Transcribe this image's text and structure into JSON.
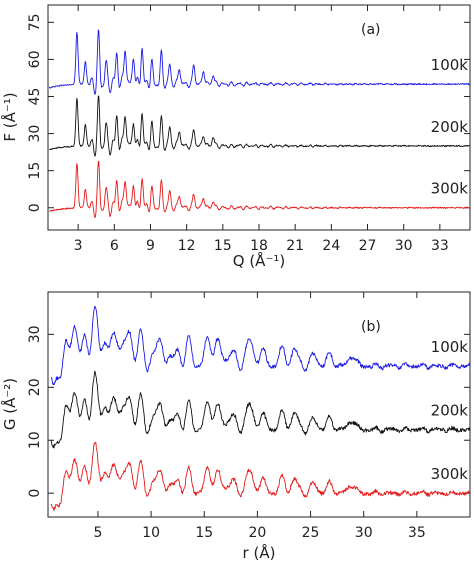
{
  "chart_data": [
    {
      "type": "line",
      "panel_label": "(a)",
      "xlabel": "Q (Å⁻¹)",
      "ylabel": "F (Å⁻¹)",
      "xlim": [
        0.5,
        35.5
      ],
      "ylim": [
        -9,
        82
      ],
      "xticks": [
        3,
        6,
        9,
        12,
        15,
        18,
        21,
        24,
        27,
        30,
        33
      ],
      "yticks": [
        0,
        15,
        30,
        45,
        60,
        75
      ],
      "grid": false,
      "series": [
        {
          "name": "100k",
          "color": "#1a1ae6",
          "offset": 50,
          "scale": 1.0,
          "peaks": [
            [
              2.9,
              21
            ],
            [
              3.6,
              9
            ],
            [
              4.7,
              19
            ],
            [
              5.3,
              8
            ],
            [
              6.2,
              13
            ],
            [
              6.9,
              16
            ],
            [
              7.6,
              12
            ],
            [
              8.3,
              15
            ],
            [
              9.1,
              9
            ],
            [
              9.9,
              12
            ],
            [
              10.6,
              8
            ],
            [
              11.4,
              7
            ],
            [
              12.6,
              8
            ],
            [
              13.4,
              6
            ],
            [
              14.2,
              4
            ]
          ]
        },
        {
          "name": "200k",
          "color": "#111111",
          "offset": 25,
          "scale": 0.97,
          "peaks": [
            [
              2.9,
              20
            ],
            [
              3.6,
              9
            ],
            [
              4.7,
              18
            ],
            [
              5.3,
              8
            ],
            [
              6.2,
              13
            ],
            [
              6.9,
              15
            ],
            [
              7.6,
              11
            ],
            [
              8.3,
              14
            ],
            [
              9.1,
              9
            ],
            [
              9.9,
              11
            ],
            [
              10.6,
              8
            ],
            [
              11.4,
              7
            ],
            [
              12.6,
              7
            ],
            [
              13.4,
              5
            ],
            [
              14.2,
              4
            ]
          ]
        },
        {
          "name": "300k",
          "color": "#e61a1a",
          "offset": 0,
          "scale": 0.95,
          "peaks": [
            [
              2.9,
              19
            ],
            [
              3.6,
              8
            ],
            [
              4.7,
              17
            ],
            [
              5.3,
              7
            ],
            [
              6.2,
              12
            ],
            [
              6.9,
              14
            ],
            [
              7.6,
              11
            ],
            [
              8.3,
              13
            ],
            [
              9.1,
              8
            ],
            [
              9.9,
              10
            ],
            [
              10.6,
              7
            ],
            [
              11.4,
              6
            ],
            [
              12.6,
              6
            ],
            [
              13.4,
              5
            ],
            [
              14.2,
              3
            ]
          ]
        }
      ]
    },
    {
      "type": "line",
      "panel_label": "(b)",
      "xlabel": "r (Å)",
      "ylabel": "G (Å⁻²)",
      "xlim": [
        0.3,
        40
      ],
      "ylim": [
        -4.5,
        38
      ],
      "xticks": [
        5,
        10,
        15,
        20,
        25,
        30,
        35
      ],
      "yticks": [
        0,
        10,
        20,
        30
      ],
      "grid": false,
      "series": [
        {
          "name": "100k",
          "color": "#1a1ae6",
          "offset": 24,
          "scale": 1.0,
          "peaks": [
            [
              2.6,
              9
            ],
            [
              3.9,
              6
            ],
            [
              4.8,
              8
            ],
            [
              5.7,
              5
            ],
            [
              6.8,
              7
            ],
            [
              7.9,
              6
            ],
            [
              8.9,
              5
            ],
            [
              10.3,
              3
            ],
            [
              11.1,
              4
            ],
            [
              12.5,
              3
            ],
            [
              13.6,
              4
            ],
            [
              15.4,
              5
            ],
            [
              16.3,
              4
            ],
            [
              17.5,
              3
            ],
            [
              19.2,
              5
            ],
            [
              20.4,
              3
            ],
            [
              22.3,
              3
            ],
            [
              23.5,
              3
            ],
            [
              25.3,
              2
            ],
            [
              26.8,
              2
            ],
            [
              28.9,
              2
            ]
          ]
        },
        {
          "name": "200k",
          "color": "#111111",
          "offset": 12,
          "scale": 0.95,
          "peaks": [
            [
              2.6,
              9
            ],
            [
              3.9,
              6
            ],
            [
              4.8,
              8
            ],
            [
              5.7,
              5
            ],
            [
              6.8,
              7
            ],
            [
              7.9,
              6
            ],
            [
              8.9,
              5
            ],
            [
              10.3,
              3
            ],
            [
              11.1,
              4
            ],
            [
              12.5,
              3
            ],
            [
              13.6,
              4
            ],
            [
              15.4,
              5
            ],
            [
              16.3,
              4
            ],
            [
              17.5,
              3
            ],
            [
              19.2,
              5
            ],
            [
              20.4,
              3
            ],
            [
              22.3,
              3
            ],
            [
              23.5,
              3
            ],
            [
              25.3,
              2
            ],
            [
              26.8,
              2
            ],
            [
              28.9,
              2
            ]
          ]
        },
        {
          "name": "300k",
          "color": "#e61a1a",
          "offset": 0,
          "scale": 0.85,
          "peaks": [
            [
              2.6,
              9
            ],
            [
              3.9,
              6
            ],
            [
              4.8,
              8
            ],
            [
              5.7,
              5
            ],
            [
              6.8,
              7
            ],
            [
              7.9,
              6
            ],
            [
              8.9,
              5
            ],
            [
              10.3,
              3
            ],
            [
              11.1,
              4
            ],
            [
              12.5,
              3
            ],
            [
              13.6,
              4
            ],
            [
              15.4,
              5
            ],
            [
              16.3,
              4
            ],
            [
              17.5,
              3
            ],
            [
              19.2,
              5
            ],
            [
              20.4,
              3
            ],
            [
              22.3,
              3
            ],
            [
              23.5,
              3
            ],
            [
              25.3,
              2
            ],
            [
              26.8,
              2
            ],
            [
              28.9,
              2
            ]
          ]
        }
      ]
    }
  ]
}
